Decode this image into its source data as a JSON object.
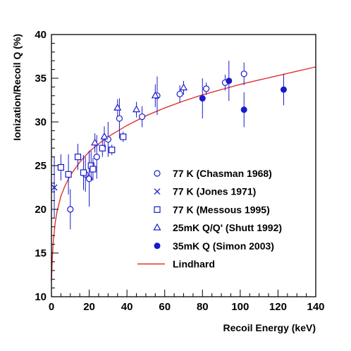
{
  "chart_data": {
    "type": "scatter",
    "xlabel": "Recoil Energy (keV)",
    "ylabel": "Ionization/Recoil Q (%)",
    "xlim": [
      0,
      140
    ],
    "ylim": [
      10,
      40
    ],
    "xticks": [
      0,
      20,
      40,
      60,
      80,
      100,
      120,
      140
    ],
    "yticks": [
      10,
      15,
      20,
      25,
      30,
      35,
      40
    ],
    "grid": false,
    "legend_position": "lower-right",
    "series": [
      {
        "name": "77 K (Chasman 1968)",
        "marker": "open-circle",
        "color": "#1a1acc",
        "points": [
          {
            "x": 10,
            "y": 20.0,
            "yerr": 2.3
          },
          {
            "x": 18,
            "y": 24.0,
            "yerr": 2.0
          },
          {
            "x": 20,
            "y": 23.5,
            "yerr": 3.2
          },
          {
            "x": 24,
            "y": 26.0,
            "yerr": 2.5
          },
          {
            "x": 30,
            "y": 28.0,
            "yerr": 2.0
          },
          {
            "x": 36,
            "y": 30.4,
            "yerr": 2.3
          },
          {
            "x": 48,
            "y": 30.6,
            "yerr": 1.2
          },
          {
            "x": 56,
            "y": 33.0,
            "yerr": 2.2
          },
          {
            "x": 68,
            "y": 33.2,
            "yerr": 1.0
          },
          {
            "x": 82,
            "y": 33.8,
            "yerr": 0.7
          },
          {
            "x": 92,
            "y": 34.5,
            "yerr": 0.9
          },
          {
            "x": 102,
            "y": 35.5,
            "yerr": 1.3
          }
        ]
      },
      {
        "name": "77 K (Jones 1971)",
        "marker": "cross",
        "color": "#1a1acc",
        "points": [
          {
            "x": 1.5,
            "y": 22.5,
            "yerr": 3.5
          }
        ]
      },
      {
        "name": "77 K (Messous 1995)",
        "marker": "open-square",
        "color": "#1a1acc",
        "points": [
          {
            "x": 5,
            "y": 24.8,
            "yerr": 1.5
          },
          {
            "x": 9,
            "y": 24.0,
            "yerr": 2.3
          },
          {
            "x": 14,
            "y": 26.0,
            "yerr": 1.5
          },
          {
            "x": 17,
            "y": 24.2,
            "yerr": 2.0
          },
          {
            "x": 21,
            "y": 25.0,
            "yerr": 1.7
          },
          {
            "x": 22,
            "y": 24.6,
            "yerr": 1.3
          },
          {
            "x": 27,
            "y": 27.0,
            "yerr": 1.0
          },
          {
            "x": 32,
            "y": 26.8,
            "yerr": 0.6
          },
          {
            "x": 38,
            "y": 28.3,
            "yerr": 0.6
          }
        ]
      },
      {
        "name": "25mK Q/Q' (Shutt 1992)",
        "marker": "open-triangle",
        "color": "#1a1acc",
        "points": [
          {
            "x": 23,
            "y": 27.6,
            "yerr": 1.1
          },
          {
            "x": 28,
            "y": 28.3,
            "yerr": 1.2
          },
          {
            "x": 35,
            "y": 31.6,
            "yerr": 1.0
          },
          {
            "x": 45,
            "y": 31.4,
            "yerr": 0.9
          },
          {
            "x": 55,
            "y": 33.0,
            "yerr": 1.3
          },
          {
            "x": 70,
            "y": 33.9,
            "yerr": 0.8
          }
        ]
      },
      {
        "name": "35mK Q (Simon 2003)",
        "marker": "filled-circle",
        "color": "#1a1acc",
        "points": [
          {
            "x": 80,
            "y": 32.7,
            "yerr": 2.3
          },
          {
            "x": 94,
            "y": 34.7,
            "yerr": 2.3
          },
          {
            "x": 102,
            "y": 31.4,
            "yerr": 2.0
          },
          {
            "x": 123,
            "y": 33.7,
            "yerr": 1.8
          }
        ]
      }
    ],
    "curve": {
      "name": "Lindhard",
      "color": "#e03030",
      "x": [
        0,
        0.2,
        0.5,
        1,
        2,
        3,
        5,
        7,
        10,
        15,
        20,
        25,
        30,
        40,
        50,
        60,
        70,
        80,
        90,
        100,
        110,
        120,
        130,
        140
      ],
      "y": [
        11.8,
        12.9,
        14.7,
        16.4,
        18.5,
        19.8,
        21.5,
        22.6,
        23.9,
        25.4,
        26.6,
        27.5,
        28.3,
        29.6,
        30.7,
        31.6,
        32.4,
        33.1,
        33.7,
        34.3,
        34.8,
        35.3,
        35.8,
        36.3
      ]
    }
  }
}
